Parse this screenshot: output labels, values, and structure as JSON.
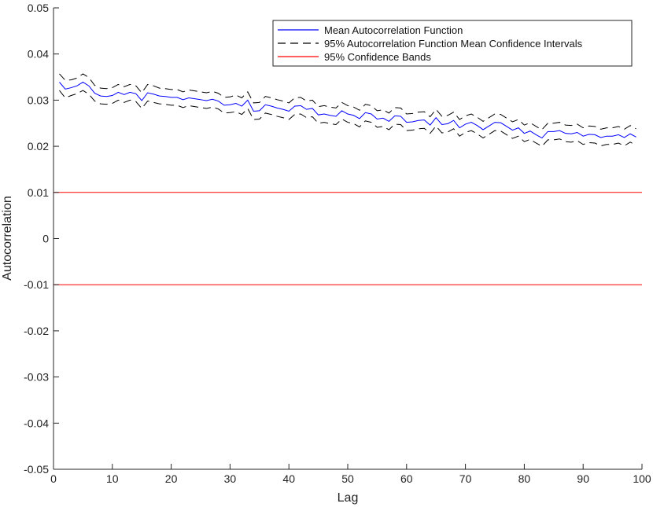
{
  "chart_data": {
    "type": "line",
    "xlabel": "Lag",
    "ylabel": "Autocorrelation",
    "xlim": [
      0,
      100
    ],
    "ylim": [
      -0.05,
      0.05
    ],
    "xticks": [
      0,
      10,
      20,
      30,
      40,
      50,
      60,
      70,
      80,
      90,
      100
    ],
    "yticks": [
      -0.05,
      -0.04,
      -0.03,
      -0.02,
      -0.01,
      0,
      0.01,
      0.02,
      0.03,
      0.04,
      0.05
    ],
    "xtick_labels": [
      "0",
      "10",
      "20",
      "30",
      "40",
      "50",
      "60",
      "70",
      "80",
      "90",
      "100"
    ],
    "ytick_labels": [
      "-0.05",
      "-0.04",
      "-0.03",
      "-0.02",
      "-0.01",
      "0",
      "0.01",
      "0.02",
      "0.03",
      "0.04",
      "0.05"
    ],
    "grid": false,
    "legend_position": "top-right",
    "x": [
      1,
      2,
      3,
      4,
      5,
      6,
      7,
      8,
      9,
      10,
      11,
      12,
      13,
      14,
      15,
      16,
      17,
      18,
      19,
      20,
      21,
      22,
      23,
      24,
      25,
      26,
      27,
      28,
      29,
      30,
      31,
      32,
      33,
      34,
      35,
      36,
      37,
      38,
      39,
      40,
      41,
      42,
      43,
      44,
      45,
      46,
      47,
      48,
      49,
      50,
      51,
      52,
      53,
      54,
      55,
      56,
      57,
      58,
      59,
      60,
      61,
      62,
      63,
      64,
      65,
      66,
      67,
      68,
      69,
      70,
      71,
      72,
      73,
      74,
      75,
      76,
      77,
      78,
      79,
      80,
      81,
      82,
      83,
      84,
      85,
      86,
      87,
      88,
      89,
      90,
      91,
      92,
      93,
      94,
      95,
      96,
      97,
      98,
      99
    ],
    "series": [
      {
        "name": "Mean Autocorrelation Function",
        "color": "#0000ff",
        "style": "solid",
        "values": [
          0.0339,
          0.0324,
          0.0327,
          0.0331,
          0.0339,
          0.0331,
          0.0315,
          0.0309,
          0.0308,
          0.031,
          0.0317,
          0.0312,
          0.0317,
          0.0314,
          0.0299,
          0.0316,
          0.0313,
          0.0309,
          0.0308,
          0.0306,
          0.0306,
          0.0301,
          0.0305,
          0.0303,
          0.0301,
          0.0299,
          0.0302,
          0.0298,
          0.0289,
          0.029,
          0.0293,
          0.0287,
          0.03,
          0.0276,
          0.0277,
          0.029,
          0.0287,
          0.0283,
          0.028,
          0.0276,
          0.0287,
          0.0288,
          0.028,
          0.0282,
          0.0268,
          0.027,
          0.0267,
          0.0265,
          0.0277,
          0.027,
          0.0267,
          0.026,
          0.0273,
          0.027,
          0.0259,
          0.0261,
          0.0254,
          0.0266,
          0.0265,
          0.0252,
          0.0253,
          0.0256,
          0.0257,
          0.0246,
          0.0262,
          0.0247,
          0.0249,
          0.0256,
          0.024,
          0.0248,
          0.0252,
          0.0245,
          0.0236,
          0.0244,
          0.0252,
          0.0251,
          0.0243,
          0.0235,
          0.024,
          0.0228,
          0.0233,
          0.0225,
          0.0218,
          0.0232,
          0.0232,
          0.0234,
          0.0228,
          0.0227,
          0.023,
          0.0222,
          0.0226,
          0.0225,
          0.0219,
          0.0222,
          0.0222,
          0.0225,
          0.0219,
          0.0227,
          0.022
        ]
      },
      {
        "name": "95% Autocorrelation Function Mean Confidence Intervals",
        "color": "#000000",
        "style": "dashed",
        "values": [
          0.0357,
          0.0343,
          0.0344,
          0.0348,
          0.0357,
          0.0349,
          0.0332,
          0.0326,
          0.0325,
          0.0327,
          0.0334,
          0.0329,
          0.0334,
          0.0331,
          0.0316,
          0.0334,
          0.0331,
          0.0326,
          0.0325,
          0.0323,
          0.0323,
          0.0318,
          0.0322,
          0.032,
          0.0318,
          0.0316,
          0.0319,
          0.0315,
          0.0306,
          0.0307,
          0.0311,
          0.0305,
          0.0318,
          0.0294,
          0.0295,
          0.0308,
          0.0305,
          0.0301,
          0.0298,
          0.0294,
          0.0305,
          0.0306,
          0.0298,
          0.03,
          0.0286,
          0.0288,
          0.0285,
          0.0283,
          0.0295,
          0.0288,
          0.0285,
          0.0278,
          0.0291,
          0.0288,
          0.0277,
          0.0279,
          0.0272,
          0.0284,
          0.0283,
          0.027,
          0.0271,
          0.0274,
          0.0275,
          0.0264,
          0.028,
          0.0265,
          0.0267,
          0.0274,
          0.0258,
          0.0266,
          0.027,
          0.0263,
          0.0254,
          0.0262,
          0.027,
          0.0269,
          0.0261,
          0.0253,
          0.0258,
          0.0246,
          0.0251,
          0.0243,
          0.0236,
          0.025,
          0.025,
          0.0252,
          0.0246,
          0.0245,
          0.0248,
          0.024,
          0.0244,
          0.0243,
          0.0237,
          0.024,
          0.024,
          0.0243,
          0.0237,
          0.0245,
          0.0238
        ]
      },
      {
        "name": "95% Autocorrelation Function Mean Confidence Intervals lower",
        "color": "#000000",
        "style": "dashed",
        "values": [
          0.0321,
          0.0305,
          0.031,
          0.0314,
          0.0321,
          0.0313,
          0.0298,
          0.0292,
          0.0291,
          0.0293,
          0.03,
          0.0295,
          0.03,
          0.0297,
          0.0282,
          0.0298,
          0.0295,
          0.0292,
          0.0291,
          0.0289,
          0.0289,
          0.0284,
          0.0288,
          0.0286,
          0.0284,
          0.0282,
          0.0285,
          0.0281,
          0.0272,
          0.0273,
          0.0275,
          0.0269,
          0.0282,
          0.0258,
          0.0259,
          0.0272,
          0.0269,
          0.0265,
          0.0262,
          0.0258,
          0.0269,
          0.027,
          0.0262,
          0.0264,
          0.025,
          0.0252,
          0.0249,
          0.0247,
          0.0259,
          0.0252,
          0.0249,
          0.0242,
          0.0255,
          0.0252,
          0.0241,
          0.0243,
          0.0236,
          0.0248,
          0.0247,
          0.0234,
          0.0235,
          0.0238,
          0.0239,
          0.0228,
          0.0244,
          0.0229,
          0.0231,
          0.0238,
          0.0222,
          0.023,
          0.0234,
          0.0227,
          0.0218,
          0.0226,
          0.0234,
          0.0233,
          0.0225,
          0.0217,
          0.0222,
          0.021,
          0.0215,
          0.0207,
          0.02,
          0.0214,
          0.0214,
          0.0216,
          0.021,
          0.0209,
          0.0212,
          0.0204,
          0.0208,
          0.0207,
          0.0201,
          0.0204,
          0.0204,
          0.0207,
          0.0201,
          0.0209,
          0.0202
        ]
      }
    ],
    "reference_lines": [
      {
        "y": 0.01,
        "color": "#ff0000"
      },
      {
        "y": -0.01,
        "color": "#ff0000"
      }
    ],
    "legend": [
      {
        "label": "Mean Autocorrelation Function",
        "color": "#0000ff",
        "style": "solid"
      },
      {
        "label": "95% Autocorrelation Function Mean Confidence Intervals",
        "color": "#000000",
        "style": "dashed"
      },
      {
        "label": "95% Confidence Bands",
        "color": "#ff0000",
        "style": "solid"
      }
    ]
  }
}
